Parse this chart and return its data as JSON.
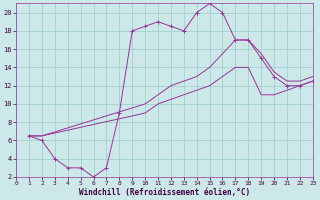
{
  "xlabel": "Windchill (Refroidissement éolien,°C)",
  "bg_color": "#cce8e8",
  "line_color": "#993399",
  "grid_color": "#99cccc",
  "xmin": 0,
  "xmax": 23,
  "ymin": 2,
  "ymax": 21,
  "yticks": [
    2,
    4,
    6,
    8,
    10,
    12,
    14,
    16,
    18,
    20
  ],
  "xticks": [
    0,
    1,
    2,
    3,
    4,
    5,
    6,
    7,
    8,
    9,
    10,
    11,
    12,
    13,
    14,
    15,
    16,
    17,
    18,
    19,
    20,
    21,
    22,
    23
  ],
  "line1_x": [
    1,
    2,
    3,
    4,
    5,
    6,
    7,
    8,
    9,
    10,
    11,
    12,
    13,
    14,
    15,
    16,
    17,
    18,
    19,
    20,
    21,
    22,
    23
  ],
  "line1_y": [
    6.5,
    6,
    4,
    3,
    3,
    2,
    3,
    9,
    18,
    18.5,
    19,
    18.5,
    18,
    20,
    21,
    20,
    17,
    17,
    15,
    13,
    12,
    12,
    12.5
  ],
  "line2_x": [
    1,
    2,
    10,
    11,
    12,
    13,
    14,
    15,
    16,
    17,
    18,
    19,
    20,
    21,
    22,
    23
  ],
  "line2_y": [
    6.5,
    6.5,
    10,
    11,
    12,
    12.5,
    13,
    14,
    15.5,
    17,
    17,
    15.5,
    13.5,
    12.5,
    12.5,
    13
  ],
  "line3_x": [
    1,
    2,
    10,
    11,
    12,
    13,
    14,
    15,
    16,
    17,
    18,
    19,
    20,
    21,
    22,
    23
  ],
  "line3_y": [
    6.5,
    6.5,
    9,
    10,
    10.5,
    11,
    11.5,
    12,
    13,
    14,
    14,
    11,
    11,
    11.5,
    12,
    12.5
  ],
  "tick_fontsize": 4.5,
  "xlabel_fontsize": 5.5,
  "tick_color": "#440044",
  "spine_color": "#993399"
}
